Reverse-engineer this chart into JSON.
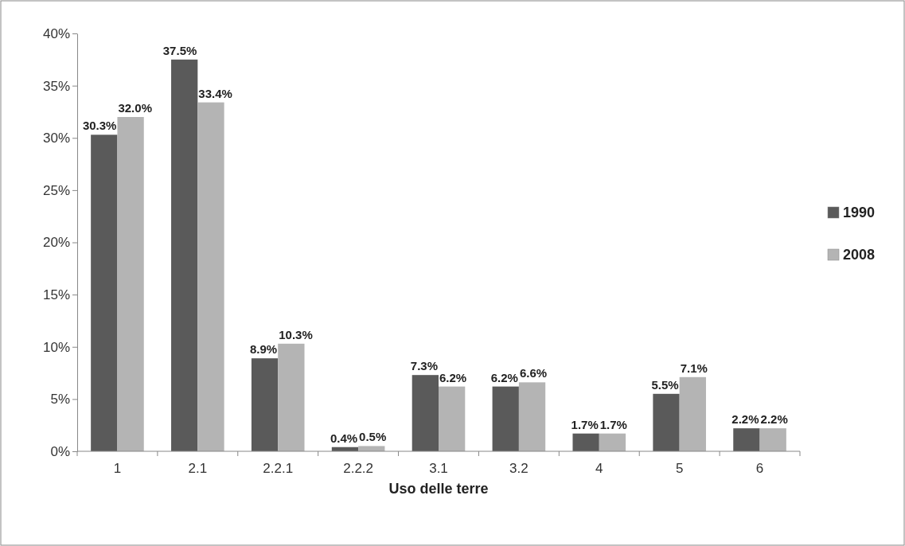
{
  "chart_data": {
    "type": "bar",
    "xlabel": "Uso delle terre",
    "categories": [
      "1",
      "2.1",
      "2.2.1",
      "2.2.2",
      "3.1",
      "3.2",
      "4",
      "5",
      "6"
    ],
    "series": [
      {
        "name": "1990",
        "color": "#5a5a5a",
        "values": [
          30.3,
          37.5,
          8.9,
          0.4,
          7.3,
          6.2,
          1.7,
          5.5,
          2.2
        ],
        "value_labels": [
          "30.3%",
          "37.5%",
          "8.9%",
          "0.4%",
          "7.3%",
          "6.2%",
          "1.7%",
          "5.5%",
          "2.2%"
        ]
      },
      {
        "name": "2008",
        "color": "#b4b4b4",
        "values": [
          32.0,
          33.4,
          10.3,
          0.5,
          6.2,
          6.6,
          1.7,
          7.1,
          2.2
        ],
        "value_labels": [
          "32.0%",
          "33.4%",
          "10.3%",
          "0.5%",
          "6.2%",
          "6.6%",
          "1.7%",
          "7.1%",
          "2.2%"
        ]
      }
    ],
    "ylim": [
      0,
      40
    ],
    "yticks": [
      {
        "value": 0,
        "label": "0%"
      },
      {
        "value": 5,
        "label": "5%"
      },
      {
        "value": 10,
        "label": "10%"
      },
      {
        "value": 15,
        "label": "15%"
      },
      {
        "value": 20,
        "label": "20%"
      },
      {
        "value": 25,
        "label": "25%"
      },
      {
        "value": 30,
        "label": "30%"
      },
      {
        "value": 35,
        "label": "35%"
      },
      {
        "value": 40,
        "label": "40%"
      }
    ],
    "legend": "right",
    "grid": false
  }
}
